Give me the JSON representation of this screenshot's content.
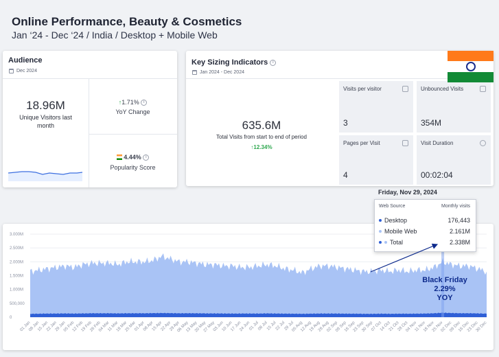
{
  "header": {
    "title": "Online Performance, Beauty & Cosmetics",
    "subtitle": "Jan ‘24 - Dec ‘24 / India / Desktop + Mobile Web"
  },
  "audience": {
    "title": "Audience",
    "date": "Dec 2024",
    "unique_visitors": "18.96M",
    "unique_visitors_label": "Unique Visitors last month",
    "yoy_value": "1.71%",
    "yoy_label": "YoY Change",
    "popularity_value": "4.44%",
    "popularity_label": "Popularity Score"
  },
  "ksi": {
    "title": "Key Sizing Indicators",
    "date": "Jan 2024 - Dec 2024",
    "total_visits": "635.6M",
    "total_visits_label": "Total Visits from start to end of period",
    "total_visits_change": "12.34%",
    "tiles": [
      {
        "label": "Visits per visitor",
        "value": "3"
      },
      {
        "label": "Unbounced Visits",
        "value": "354M"
      },
      {
        "label": "Pages per Visit",
        "value": "4"
      },
      {
        "label": "Visit Duration",
        "value": "00:02:04"
      }
    ]
  },
  "tooltip": {
    "date": "Friday, Nov 29, 2024",
    "col_source": "Web Source",
    "col_visits": "Monthly visits",
    "rows": [
      {
        "name": "Desktop",
        "value": "176,443",
        "color": "#2f5fd6"
      },
      {
        "name": "Mobile Web",
        "value": "2.161M",
        "color": "#a9c3f5"
      },
      {
        "name": "Total",
        "value": "2.338M",
        "color": "#2f5fd6"
      }
    ]
  },
  "annotation": {
    "line1": "Black Friday",
    "line2": "2.29%",
    "line3": "YOY"
  },
  "colors": {
    "mobile": "#a9c3f5",
    "desktop": "#2f5fd6",
    "positive": "#2fa84f"
  },
  "chart_data": {
    "type": "area",
    "y_ticks": [
      "0",
      "500,000",
      "1.000M",
      "1.500M",
      "2.000M",
      "2.500M",
      "3.000M"
    ],
    "ylim": [
      0,
      3000000
    ],
    "x_labels": [
      "01 Jan",
      "08 Jan",
      "15 Jan",
      "22 Jan",
      "29 Jan",
      "05 Feb",
      "12 Feb",
      "19 Feb",
      "26 Feb",
      "04 Mar",
      "11 Mar",
      "18 Mar",
      "25 Mar",
      "01 Apr",
      "08 Apr",
      "15 Apr",
      "22 Apr",
      "29 Apr",
      "06 May",
      "13 May",
      "20 May",
      "27 May",
      "03 Jun",
      "10 Jun",
      "17 Jun",
      "24 Jun",
      "01 Jul",
      "08 Jul",
      "15 Jul",
      "22 Jul",
      "29 Jul",
      "05 Aug",
      "12 Aug",
      "19 Aug",
      "26 Aug",
      "02 Sep",
      "09 Sep",
      "16 Sep",
      "23 Sep",
      "30 Sep",
      "07 Oct",
      "14 Oct",
      "21 Oct",
      "28 Oct",
      "04 Nov",
      "11 Nov",
      "18 Nov",
      "25 Nov",
      "02 Dec",
      "09 Dec",
      "16 Dec",
      "23 Dec",
      "30 Dec"
    ],
    "series": [
      {
        "name": "Mobile Web",
        "values": [
          1650000,
          1700000,
          1750000,
          1800000,
          1850000,
          1800000,
          1900000,
          1950000,
          1950000,
          1950000,
          1900000,
          2000000,
          2000000,
          2000000,
          2050000,
          2200000,
          2100000,
          2000000,
          2000000,
          1950000,
          1900000,
          1900000,
          1850000,
          1850000,
          1800000,
          1800000,
          1850000,
          1900000,
          1850000,
          1750000,
          1700000,
          1600000,
          1750000,
          1850000,
          1850000,
          1800000,
          1750000,
          1700000,
          1650000,
          1650000,
          1700000,
          1650000,
          1700000,
          1650000,
          1700000,
          1700000,
          1800000,
          2000000,
          1900000,
          1850000,
          1850000,
          1750000,
          1650000
        ]
      },
      {
        "name": "Desktop",
        "values": [
          120000,
          125000,
          130000,
          130000,
          135000,
          130000,
          135000,
          140000,
          140000,
          140000,
          135000,
          140000,
          140000,
          140000,
          145000,
          150000,
          145000,
          140000,
          140000,
          140000,
          135000,
          135000,
          130000,
          130000,
          130000,
          130000,
          130000,
          135000,
          130000,
          125000,
          125000,
          120000,
          125000,
          130000,
          130000,
          130000,
          125000,
          125000,
          120000,
          120000,
          125000,
          120000,
          125000,
          125000,
          125000,
          130000,
          140000,
          160000,
          150000,
          140000,
          140000,
          135000,
          125000
        ]
      }
    ]
  }
}
